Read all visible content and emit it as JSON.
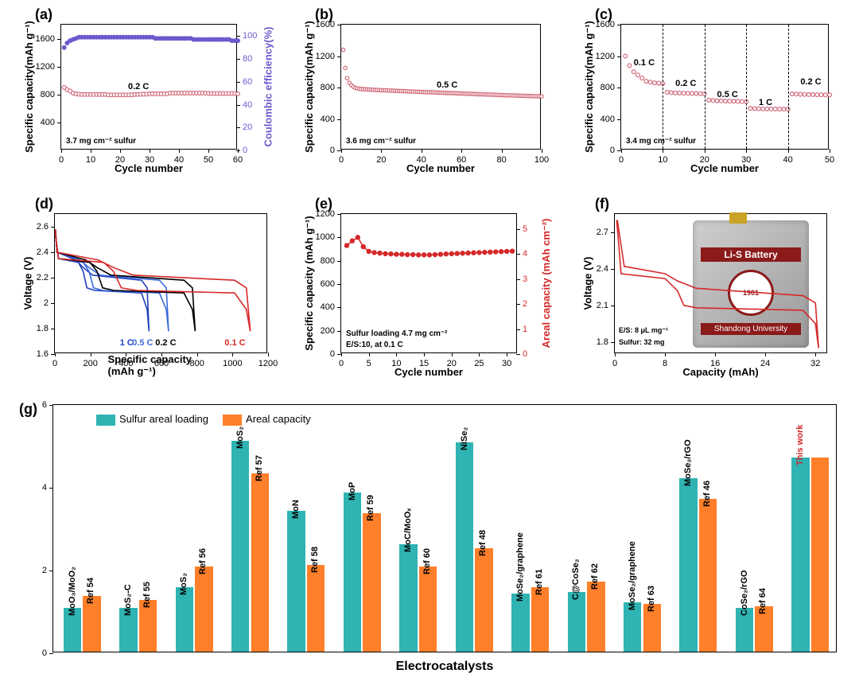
{
  "colors": {
    "capacity_marker": "#d26a7a",
    "ce_marker": "#6a5acd",
    "e_marker": "#d62828",
    "bar_teal": "#2fb3b3",
    "bar_orange": "#ff7f2a",
    "pouch_red": "#8b1a1a",
    "f_curve": "#d62828"
  },
  "a": {
    "letter": "(a)",
    "xlabel": "Cycle number",
    "ylabel": "Specific capacity(mAh g⁻¹)",
    "ylabel2": "Coulombic efficiency(%)",
    "ylabel2_color": "#6a5acd",
    "xlim": [
      0,
      60
    ],
    "ylim": [
      0,
      1800
    ],
    "ylim2": [
      0,
      110
    ],
    "xticks": [
      0,
      10,
      20,
      30,
      40,
      50,
      60
    ],
    "yticks": [
      400,
      800,
      1200,
      1600
    ],
    "y2ticks": [
      0,
      20,
      40,
      60,
      80,
      100
    ],
    "label_center": "0.2 C",
    "note": "3.7 mg cm⁻² sulfur",
    "capacity": [
      900,
      870,
      850,
      820,
      810,
      805,
      800,
      800,
      800,
      800,
      800,
      800,
      800,
      800,
      800,
      795,
      795,
      795,
      795,
      795,
      795,
      795,
      795,
      795,
      800,
      800,
      805,
      805,
      805,
      810,
      810,
      810,
      810,
      810,
      810,
      810,
      820,
      820,
      820,
      820,
      820,
      820,
      820,
      820,
      820,
      820,
      820,
      820,
      820,
      815,
      815,
      815,
      815,
      815,
      815,
      815,
      815,
      815,
      815,
      810
    ],
    "ce": [
      90,
      94,
      96,
      97,
      98,
      99,
      99,
      99,
      99,
      99,
      99,
      99,
      99,
      99,
      99,
      99,
      99,
      99,
      99,
      99,
      99,
      99,
      99,
      99,
      99,
      99,
      99,
      99,
      99,
      99,
      99,
      98,
      98,
      98,
      98,
      98,
      98,
      98,
      98,
      98,
      98,
      98,
      98,
      98,
      97,
      97,
      97,
      97,
      97,
      97,
      97,
      97,
      97,
      97,
      97,
      97,
      97,
      96,
      96,
      96
    ]
  },
  "b": {
    "letter": "(b)",
    "xlabel": "Cycle number",
    "ylabel": "Specific capacity(mAh g⁻¹)",
    "xlim": [
      0,
      100
    ],
    "ylim": [
      0,
      1600
    ],
    "xticks": [
      0,
      20,
      40,
      60,
      80,
      100
    ],
    "yticks": [
      0,
      400,
      800,
      1200,
      1600
    ],
    "label_center": "0.5 C",
    "note": "3.6 mg cm⁻² sulfur",
    "capacity": [
      1280,
      1050,
      920,
      860,
      830,
      810,
      795,
      790,
      785,
      780,
      780,
      778,
      775,
      775,
      772,
      770,
      770,
      768,
      768,
      765,
      765,
      765,
      762,
      762,
      760,
      760,
      758,
      758,
      755,
      755,
      755,
      752,
      752,
      750,
      750,
      748,
      748,
      745,
      745,
      745,
      742,
      742,
      740,
      740,
      740,
      738,
      738,
      735,
      735,
      735,
      732,
      732,
      730,
      730,
      730,
      728,
      728,
      725,
      725,
      725,
      722,
      722,
      720,
      720,
      720,
      718,
      718,
      715,
      715,
      715,
      712,
      712,
      710,
      710,
      710,
      708,
      708,
      705,
      705,
      705,
      702,
      702,
      700,
      700,
      700,
      698,
      698,
      698,
      695,
      695,
      695,
      695,
      692,
      692,
      692,
      690,
      690,
      690,
      688,
      688
    ]
  },
  "c": {
    "letter": "(c)",
    "xlabel": "Cycle number",
    "ylabel": "Specific capacity(mAh g⁻¹)",
    "xlim": [
      0,
      50
    ],
    "ylim": [
      0,
      1600
    ],
    "xticks": [
      0,
      10,
      20,
      30,
      40,
      50
    ],
    "yticks": [
      0,
      400,
      800,
      1200,
      1600
    ],
    "note": "3.4 mg cm⁻² sulfur",
    "dashes": [
      10,
      20,
      30,
      40
    ],
    "step_labels": [
      "0.1 C",
      "0.2 C",
      "0.5 C",
      "1 C",
      "0.2 C"
    ],
    "capacity": [
      1200,
      1080,
      1000,
      960,
      920,
      880,
      870,
      860,
      855,
      850,
      740,
      735,
      732,
      730,
      728,
      726,
      725,
      724,
      722,
      720,
      640,
      635,
      632,
      630,
      628,
      626,
      625,
      624,
      622,
      620,
      535,
      532,
      530,
      528,
      528,
      526,
      526,
      525,
      525,
      524,
      720,
      716,
      714,
      712,
      710,
      710,
      708,
      708,
      706,
      706
    ]
  },
  "d": {
    "letter": "(d)",
    "xlabel": "Specific capacity (mAh g⁻¹)",
    "ylabel": "Voltage (V)",
    "xlim": [
      0,
      1200
    ],
    "ylim": [
      1.6,
      2.7
    ],
    "xticks": [
      0,
      200,
      400,
      600,
      800,
      1000,
      1200
    ],
    "yticks": [
      1.6,
      1.8,
      2.0,
      2.2,
      2.4,
      2.6
    ],
    "curve_labels": [
      {
        "txt": "1 C",
        "x": 410,
        "color": "#1f3fbf"
      },
      {
        "txt": "0.5 C",
        "x": 480,
        "color": "#3a6bdc"
      },
      {
        "txt": "0.2 C",
        "x": 610,
        "color": "#000000"
      },
      {
        "txt": "0.1 C",
        "x": 1000,
        "color": "#d62828"
      }
    ]
  },
  "e": {
    "letter": "(e)",
    "xlabel": "Cycle number",
    "ylabel": "Specific capacity (mAh g⁻¹)",
    "ylabel2": "Areal capacity (mAh cm⁻²)",
    "ylabel2_color": "#d62828",
    "xlim": [
      0,
      32
    ],
    "ylim": [
      0,
      1200
    ],
    "ylim2": [
      0,
      5.6
    ],
    "xticks": [
      0,
      5,
      10,
      15,
      20,
      25,
      30
    ],
    "yticks": [
      0,
      200,
      400,
      600,
      800,
      1000,
      1200
    ],
    "y2ticks": [
      0,
      1,
      2,
      3,
      4,
      5
    ],
    "note1": "Sulfur loading 4.7 mg cm⁻²",
    "note2": "E/S:10, at 0.1 C",
    "capacity": [
      930,
      970,
      1000,
      920,
      880,
      870,
      865,
      860,
      858,
      855,
      855,
      852,
      852,
      850,
      850,
      850,
      852,
      855,
      858,
      860,
      862,
      864,
      866,
      868,
      870,
      872,
      874,
      876,
      878,
      880,
      882
    ]
  },
  "f": {
    "letter": "(f)",
    "xlabel": "Capacity (mAh)",
    "ylabel": "Voltage (V)",
    "xlim": [
      0,
      34
    ],
    "ylim": [
      1.7,
      2.85
    ],
    "xticks": [
      0,
      8,
      16,
      24,
      32
    ],
    "yticks": [
      1.8,
      2.1,
      2.4,
      2.7
    ],
    "note1": "E/S: 8 μL mg⁻¹",
    "note2": "Sulfur: 32 mg",
    "pouch_title": "Li-S Battery",
    "pouch_footer": "Shandong University",
    "seal_year": "1901"
  },
  "g": {
    "letter": "(g)",
    "xlabel": "Electrocatalysts",
    "ylim": [
      0,
      6
    ],
    "yticks": [
      0,
      2,
      4,
      6
    ],
    "legend": [
      {
        "name": "Sulfur areal loading",
        "color": "#2fb3b3"
      },
      {
        "name": "Areal capacity",
        "color": "#ff7f2a"
      }
    ],
    "cats": [
      {
        "name": "MoO₃/MoO₂",
        "ref": "Ref 54",
        "loading": 1.05,
        "capacity": 1.35
      },
      {
        "name": "MoS₂-C",
        "ref": "Ref 55",
        "loading": 1.05,
        "capacity": 1.25
      },
      {
        "name": "MoS₂",
        "ref": "Ref 56",
        "loading": 1.55,
        "capacity": 2.05
      },
      {
        "name": "MoS₂",
        "ref": "Ref 57",
        "loading": 5.1,
        "capacity": 4.3
      },
      {
        "name": "MoN",
        "ref": "Ref 58",
        "loading": 3.4,
        "capacity": 2.1
      },
      {
        "name": "MoP",
        "ref": "Ref 59",
        "loading": 3.85,
        "capacity": 3.35
      },
      {
        "name": "MoC/MoOₓ",
        "ref": "Ref 60",
        "loading": 2.6,
        "capacity": 2.05
      },
      {
        "name": "NiSe₂",
        "ref": "Ref 48",
        "loading": 5.05,
        "capacity": 2.5
      },
      {
        "name": "MoSe₂/graphene",
        "ref": "Ref 61",
        "loading": 1.4,
        "capacity": 1.55
      },
      {
        "name": "C@CoSe₂",
        "ref": "Ref 62",
        "loading": 1.45,
        "capacity": 1.7
      },
      {
        "name": "MoSe₂/graphene",
        "ref": "Ref 63",
        "loading": 1.2,
        "capacity": 1.15
      },
      {
        "name": "MoSe₂/rGO",
        "ref": "Ref 46",
        "loading": 4.2,
        "capacity": 3.7
      },
      {
        "name": "CoSe₂/rGO",
        "ref": "Ref 64",
        "loading": 1.05,
        "capacity": 1.1
      },
      {
        "name": "This work",
        "ref": "",
        "loading": 4.7,
        "capacity": 4.7,
        "label_color": "#d62828"
      }
    ]
  }
}
